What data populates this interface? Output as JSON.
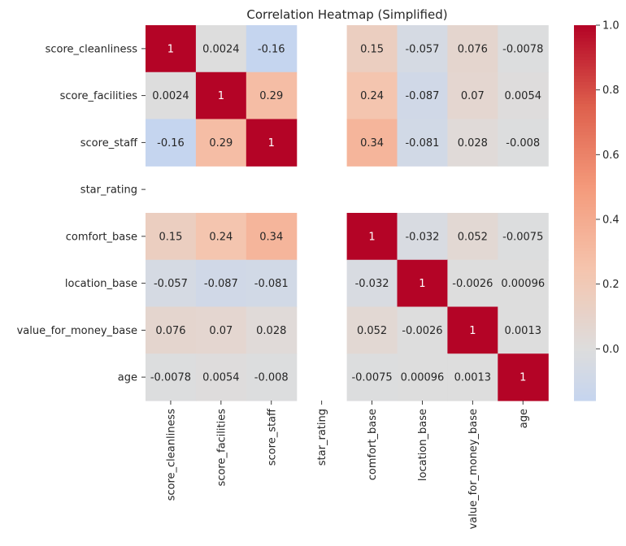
{
  "chart_data": {
    "type": "heatmap",
    "title": "Correlation Heatmap (Simplified)",
    "xlabel": "",
    "ylabel": "",
    "rows": [
      "score_cleanliness",
      "score_facilities",
      "score_staff",
      "star_rating",
      "comfort_base",
      "location_base",
      "value_for_money_base",
      "age"
    ],
    "columns": [
      "score_cleanliness",
      "score_facilities",
      "score_staff",
      "star_rating",
      "comfort_base",
      "location_base",
      "value_for_money_base",
      "age"
    ],
    "values": [
      [
        1,
        0.0024,
        -0.16,
        null,
        0.15,
        -0.057,
        0.076,
        -0.0078
      ],
      [
        0.0024,
        1,
        0.29,
        null,
        0.24,
        -0.087,
        0.07,
        0.0054
      ],
      [
        -0.16,
        0.29,
        1,
        null,
        0.34,
        -0.081,
        0.028,
        -0.008
      ],
      [
        null,
        null,
        null,
        null,
        null,
        null,
        null,
        null
      ],
      [
        0.15,
        0.24,
        0.34,
        null,
        1,
        -0.032,
        0.052,
        -0.0075
      ],
      [
        -0.057,
        -0.087,
        -0.081,
        null,
        -0.032,
        1,
        -0.0026,
        0.00096
      ],
      [
        0.076,
        0.07,
        0.028,
        null,
        0.052,
        -0.0026,
        1,
        0.0013
      ],
      [
        -0.0078,
        0.0054,
        -0.008,
        null,
        -0.0075,
        0.00096,
        0.0013,
        1
      ]
    ],
    "cell_labels": [
      [
        "1",
        "0.0024",
        "-0.16",
        "",
        "0.15",
        "-0.057",
        "0.076",
        "-0.0078"
      ],
      [
        "0.0024",
        "1",
        "0.29",
        "",
        "0.24",
        "-0.087",
        "0.07",
        "0.0054"
      ],
      [
        "-0.16",
        "0.29",
        "1",
        "",
        "0.34",
        "-0.081",
        "0.028",
        "-0.008"
      ],
      [
        "",
        "",
        "",
        "",
        "",
        "",
        "",
        ""
      ],
      [
        "0.15",
        "0.24",
        "0.34",
        "",
        "1",
        "-0.032",
        "0.052",
        "-0.0075"
      ],
      [
        "-0.057",
        "-0.087",
        "-0.081",
        "",
        "-0.032",
        "1",
        "-0.0026",
        "0.00096"
      ],
      [
        "0.076",
        "0.07",
        "0.028",
        "",
        "0.052",
        "-0.0026",
        "1",
        "0.0013"
      ],
      [
        "-0.0078",
        "0.0054",
        "-0.008",
        "",
        "-0.0075",
        "0.00096",
        "0.0013",
        "1"
      ]
    ],
    "colormap": "coolwarm",
    "center": 0,
    "vmin": -0.16,
    "vmax": 1.0,
    "colorbar": {
      "ticks": [
        0.0,
        0.2,
        0.4,
        0.6,
        0.8,
        1.0
      ],
      "tick_labels": [
        "0.0",
        "0.2",
        "0.4",
        "0.6",
        "0.8",
        "1.0"
      ]
    },
    "legend": "right"
  }
}
